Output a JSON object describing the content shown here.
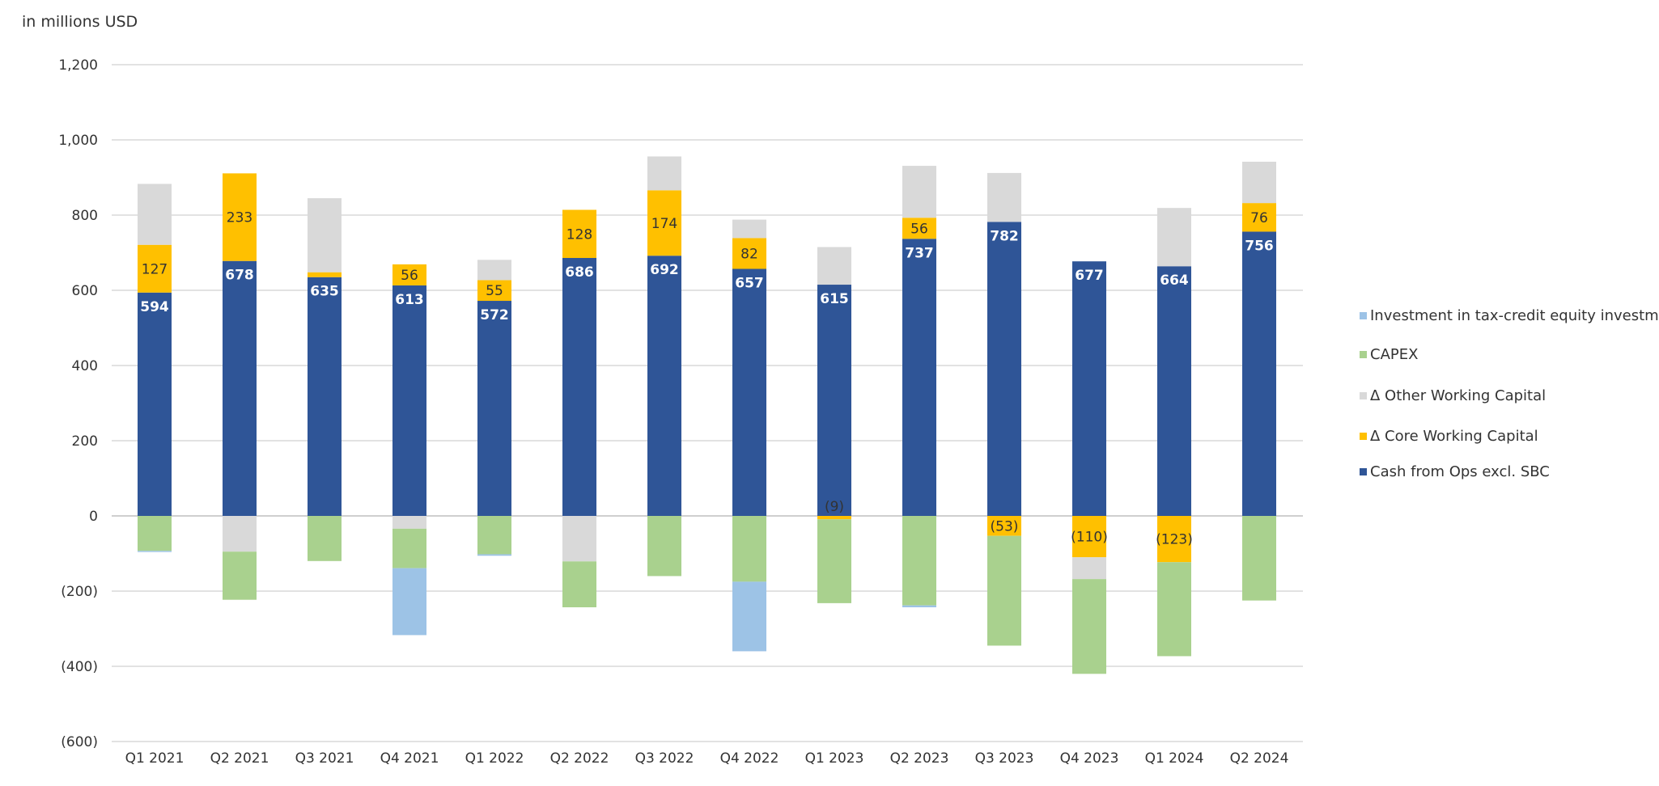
{
  "unit_label": "in millions USD",
  "chart_data": {
    "type": "bar",
    "stacked": true,
    "categories": [
      "Q1 2021",
      "Q2 2021",
      "Q3 2021",
      "Q4 2021",
      "Q1 2022",
      "Q2 2022",
      "Q3 2022",
      "Q4 2022",
      "Q1 2023",
      "Q2 2023",
      "Q3 2023",
      "Q4 2023",
      "Q1 2024",
      "Q2 2024"
    ],
    "ylim": [
      -600,
      1200
    ],
    "yticks": [
      1200,
      1000,
      800,
      600,
      400,
      200,
      0,
      -200,
      -400,
      -600
    ],
    "ytick_labels": [
      "1,200",
      "1,000",
      "800",
      "600",
      "400",
      "200",
      "0",
      "(200)",
      "(400)",
      "(600)"
    ],
    "grid": true,
    "legend_position": "right",
    "series": [
      {
        "name": "Cash from Ops excl. SBC",
        "color": "#2F5597",
        "values": [
          594,
          678,
          635,
          613,
          572,
          686,
          692,
          657,
          615,
          737,
          782,
          677,
          664,
          756
        ],
        "labels": [
          "594",
          "678",
          "635",
          "613",
          "572",
          "686",
          "692",
          "657",
          "615",
          "737",
          "782",
          "677",
          "664",
          "756"
        ],
        "label_color": "#ffffff"
      },
      {
        "name": "Δ Core Working Capital",
        "color": "#FFC000",
        "values": [
          127,
          233,
          13,
          56,
          55,
          128,
          174,
          82,
          -9,
          56,
          -53,
          -110,
          -123,
          76
        ],
        "labels": [
          "127",
          "233",
          "",
          "56",
          "55",
          "128",
          "174",
          "82",
          "(9)",
          "56",
          "(53)",
          "(110)",
          "(123)",
          "76"
        ],
        "label_color": "#333333"
      },
      {
        "name": "Δ Other Working Capital",
        "color": "#D9D9D9",
        "values": [
          162,
          -95,
          197,
          -34,
          54,
          -121,
          90,
          49,
          100,
          138,
          130,
          -58,
          155,
          110
        ]
      },
      {
        "name": "CAPEX",
        "color": "#A9D18E",
        "values": [
          -93,
          -128,
          -120,
          -105,
          -102,
          -122,
          -160,
          -175,
          -223,
          -238,
          -292,
          -252,
          -250,
          -225
        ]
      },
      {
        "name": "Investment in tax-credit equity investments",
        "color": "#9DC3E6",
        "values": [
          -3,
          0,
          0,
          -178,
          -4,
          0,
          0,
          -185,
          0,
          -5,
          0,
          0,
          0,
          0
        ]
      }
    ]
  }
}
